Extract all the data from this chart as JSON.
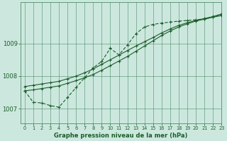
{
  "title": "Graphe pression niveau de la mer (hPa)",
  "background_color": "#cce8de",
  "grid_color": "#4d8c6a",
  "line_color": "#1a5c2a",
  "xlim": [
    -0.5,
    23
  ],
  "ylim": [
    1006.55,
    1010.25
  ],
  "yticks": [
    1007,
    1008,
    1009
  ],
  "xticks": [
    0,
    1,
    2,
    3,
    4,
    5,
    6,
    7,
    8,
    9,
    10,
    11,
    12,
    13,
    14,
    15,
    16,
    17,
    18,
    19,
    20,
    21,
    22,
    23
  ],
  "s1_x": [
    0,
    1,
    2,
    3,
    4,
    5,
    6,
    7,
    8,
    9,
    10,
    11,
    12,
    13,
    14,
    15,
    16,
    17,
    18,
    19,
    20,
    21,
    22,
    23
  ],
  "s1_y": [
    1007.55,
    1007.58,
    1007.62,
    1007.66,
    1007.7,
    1007.78,
    1007.86,
    1007.95,
    1008.05,
    1008.18,
    1008.32,
    1008.46,
    1008.6,
    1008.76,
    1008.92,
    1009.08,
    1009.24,
    1009.38,
    1009.5,
    1009.6,
    1009.68,
    1009.74,
    1009.8,
    1009.85
  ],
  "s2_x": [
    0,
    1,
    2,
    3,
    4,
    5,
    6,
    7,
    8,
    9,
    10,
    11,
    12,
    13,
    14,
    15,
    16,
    17,
    18,
    19,
    20,
    21,
    22,
    23
  ],
  "s2_y": [
    1007.68,
    1007.72,
    1007.76,
    1007.8,
    1007.84,
    1007.92,
    1008.0,
    1008.1,
    1008.22,
    1008.36,
    1008.5,
    1008.64,
    1008.78,
    1008.92,
    1009.05,
    1009.18,
    1009.32,
    1009.44,
    1009.55,
    1009.63,
    1009.7,
    1009.76,
    1009.82,
    1009.9
  ],
  "s3_x": [
    0,
    1,
    2,
    3,
    4,
    5,
    6,
    7,
    8,
    9,
    10,
    11,
    12,
    13,
    14,
    15,
    16,
    17,
    18,
    19,
    20,
    21,
    22,
    23
  ],
  "s3_y": [
    1007.55,
    1007.2,
    1007.18,
    1007.1,
    1007.05,
    1007.35,
    1007.65,
    1007.95,
    1008.25,
    1008.45,
    1008.85,
    1008.65,
    1008.95,
    1009.3,
    1009.5,
    1009.58,
    1009.62,
    1009.65,
    1009.68,
    1009.7,
    1009.72,
    1009.75,
    1009.8,
    1009.88
  ]
}
